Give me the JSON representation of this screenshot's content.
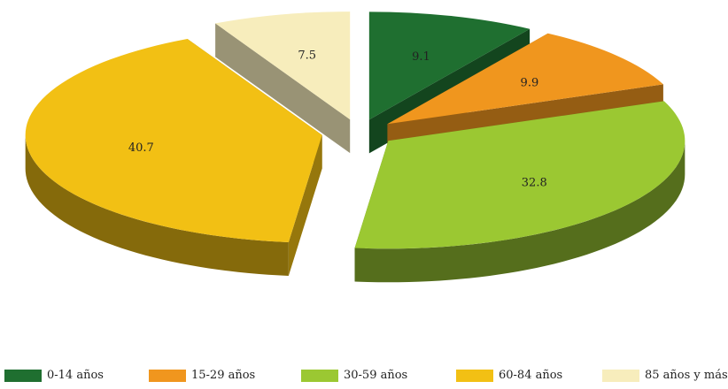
{
  "chart_data": {
    "type": "pie",
    "style": "3d-exploded",
    "title": "",
    "categories": [
      "0-14 años",
      "15-29 años",
      "30-59 años",
      "60-84 años",
      "85 años y más"
    ],
    "values": [
      9.1,
      9.9,
      32.8,
      40.7,
      7.5
    ],
    "data_labels": [
      "9.1",
      "9.9",
      "32.8",
      "40.7",
      "7.5"
    ],
    "colors": [
      "#1f6f30",
      "#f0961e",
      "#9bc832",
      "#f2c014",
      "#f7edbc"
    ],
    "legend_position": "bottom"
  }
}
